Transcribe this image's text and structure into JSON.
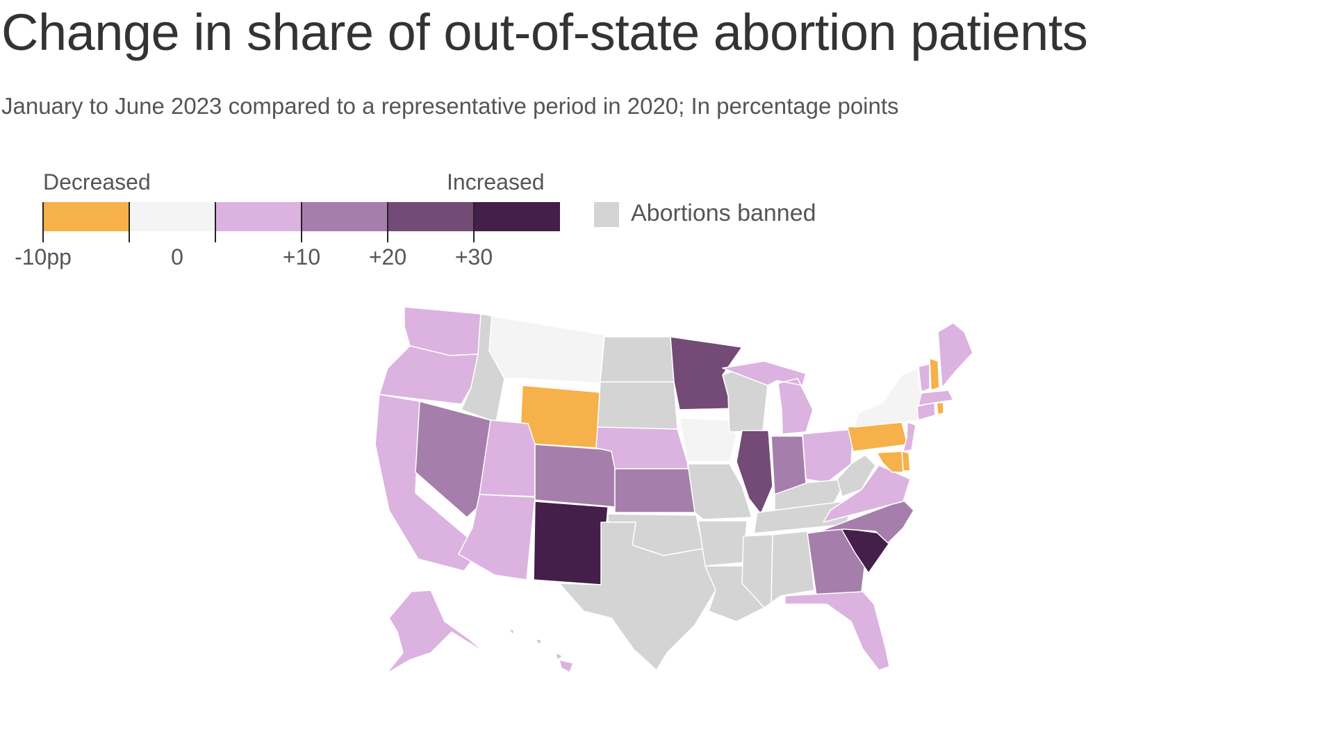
{
  "header": {
    "title": "Change in share of out-of-state abortion patients",
    "subtitle": "January to June 2023 compared to a representative period in 2020; In percentage points"
  },
  "legend": {
    "decreased_label": "Decreased",
    "increased_label": "Increased",
    "ticks": [
      "-10pp",
      "0",
      "+10",
      "+20",
      "+30"
    ],
    "banned_label": "Abortions banned",
    "colors": {
      "decrease": "#f6b14a",
      "zero": "#f4f4f4",
      "up0to10": "#dcb2e0",
      "up10to20": "#a67eab",
      "up20to30": "#744a77",
      "up30plus": "#441f49",
      "banned": "#d4d4d4"
    }
  },
  "map_data": {
    "regions": [
      {
        "state": "WA",
        "category": "up0to10"
      },
      {
        "state": "OR",
        "category": "up0to10"
      },
      {
        "state": "CA",
        "category": "up0to10"
      },
      {
        "state": "NV",
        "category": "up10to20"
      },
      {
        "state": "ID",
        "category": "banned"
      },
      {
        "state": "MT",
        "category": "zero"
      },
      {
        "state": "WY",
        "category": "decrease"
      },
      {
        "state": "UT",
        "category": "up0to10"
      },
      {
        "state": "AZ",
        "category": "up0to10"
      },
      {
        "state": "CO",
        "category": "up10to20"
      },
      {
        "state": "NM",
        "category": "up30plus"
      },
      {
        "state": "ND",
        "category": "banned"
      },
      {
        "state": "SD",
        "category": "banned"
      },
      {
        "state": "NE",
        "category": "up0to10"
      },
      {
        "state": "KS",
        "category": "up10to20"
      },
      {
        "state": "OK",
        "category": "banned"
      },
      {
        "state": "TX",
        "category": "banned"
      },
      {
        "state": "MN",
        "category": "up20to30"
      },
      {
        "state": "IA",
        "category": "zero"
      },
      {
        "state": "MO",
        "category": "banned"
      },
      {
        "state": "AR",
        "category": "banned"
      },
      {
        "state": "LA",
        "category": "banned"
      },
      {
        "state": "WI",
        "category": "banned"
      },
      {
        "state": "IL",
        "category": "up20to30"
      },
      {
        "state": "MI",
        "category": "up0to10"
      },
      {
        "state": "IN",
        "category": "up10to20"
      },
      {
        "state": "OH",
        "category": "up0to10"
      },
      {
        "state": "KY",
        "category": "banned"
      },
      {
        "state": "TN",
        "category": "banned"
      },
      {
        "state": "MS",
        "category": "banned"
      },
      {
        "state": "AL",
        "category": "banned"
      },
      {
        "state": "GA",
        "category": "up10to20"
      },
      {
        "state": "FL",
        "category": "up0to10"
      },
      {
        "state": "SC",
        "category": "up30plus"
      },
      {
        "state": "NC",
        "category": "up10to20"
      },
      {
        "state": "VA",
        "category": "up0to10"
      },
      {
        "state": "WV",
        "category": "banned"
      },
      {
        "state": "PA",
        "category": "decrease"
      },
      {
        "state": "NY",
        "category": "zero"
      },
      {
        "state": "NJ",
        "category": "up0to10"
      },
      {
        "state": "DE",
        "category": "decrease"
      },
      {
        "state": "MD",
        "category": "decrease"
      },
      {
        "state": "CT",
        "category": "up0to10"
      },
      {
        "state": "RI",
        "category": "decrease"
      },
      {
        "state": "MA",
        "category": "up0to10"
      },
      {
        "state": "VT",
        "category": "up0to10"
      },
      {
        "state": "NH",
        "category": "decrease"
      },
      {
        "state": "ME",
        "category": "up0to10"
      },
      {
        "state": "AK",
        "category": "up0to10"
      },
      {
        "state": "HI",
        "category": "up0to10"
      }
    ]
  }
}
